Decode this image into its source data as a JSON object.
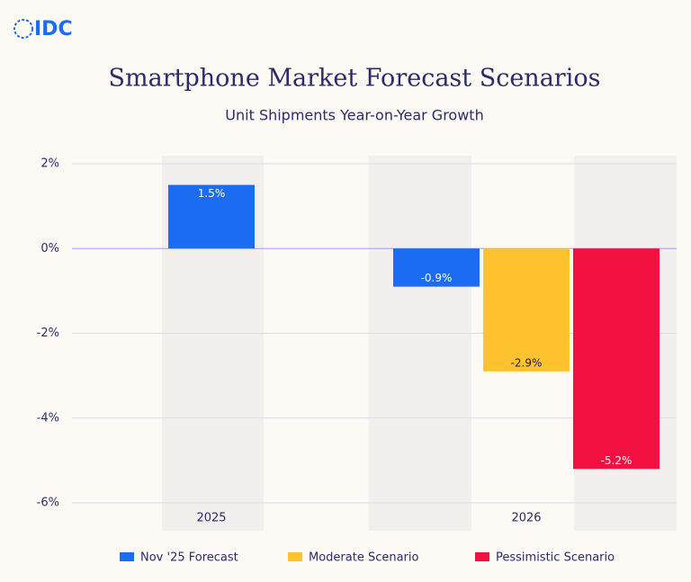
{
  "logo": "IDC",
  "chart_data": {
    "type": "bar",
    "title": "Smartphone Market Forecast Scenarios",
    "subtitle": "Unit Shipments Year-on-Year Growth",
    "categories": [
      "2025",
      "2026"
    ],
    "series": [
      {
        "name": "Nov '25 Forecast",
        "color": "#1b6cf2",
        "label_color": "#ffffff",
        "values": [
          1.5,
          -0.9
        ],
        "value_labels": [
          "1.5%",
          "-0.9%"
        ]
      },
      {
        "name": "Moderate Scenario",
        "color": "#fec32f",
        "label_color": "#1a1a3a",
        "values": [
          null,
          -2.9
        ],
        "value_labels": [
          null,
          "-2.9%"
        ]
      },
      {
        "name": "Pessimistic Scenario",
        "color": "#f1103f",
        "label_color": "#ffffff",
        "values": [
          null,
          -5.2
        ],
        "value_labels": [
          null,
          "-5.2%"
        ]
      }
    ],
    "ylim": [
      -6,
      2
    ],
    "yticks": [
      {
        "value": 2,
        "label": "2%"
      },
      {
        "value": 0,
        "label": "0%"
      },
      {
        "value": -2,
        "label": "-2%"
      },
      {
        "value": -4,
        "label": "-4%"
      },
      {
        "value": -6,
        "label": "-6%"
      }
    ],
    "grid": true
  }
}
